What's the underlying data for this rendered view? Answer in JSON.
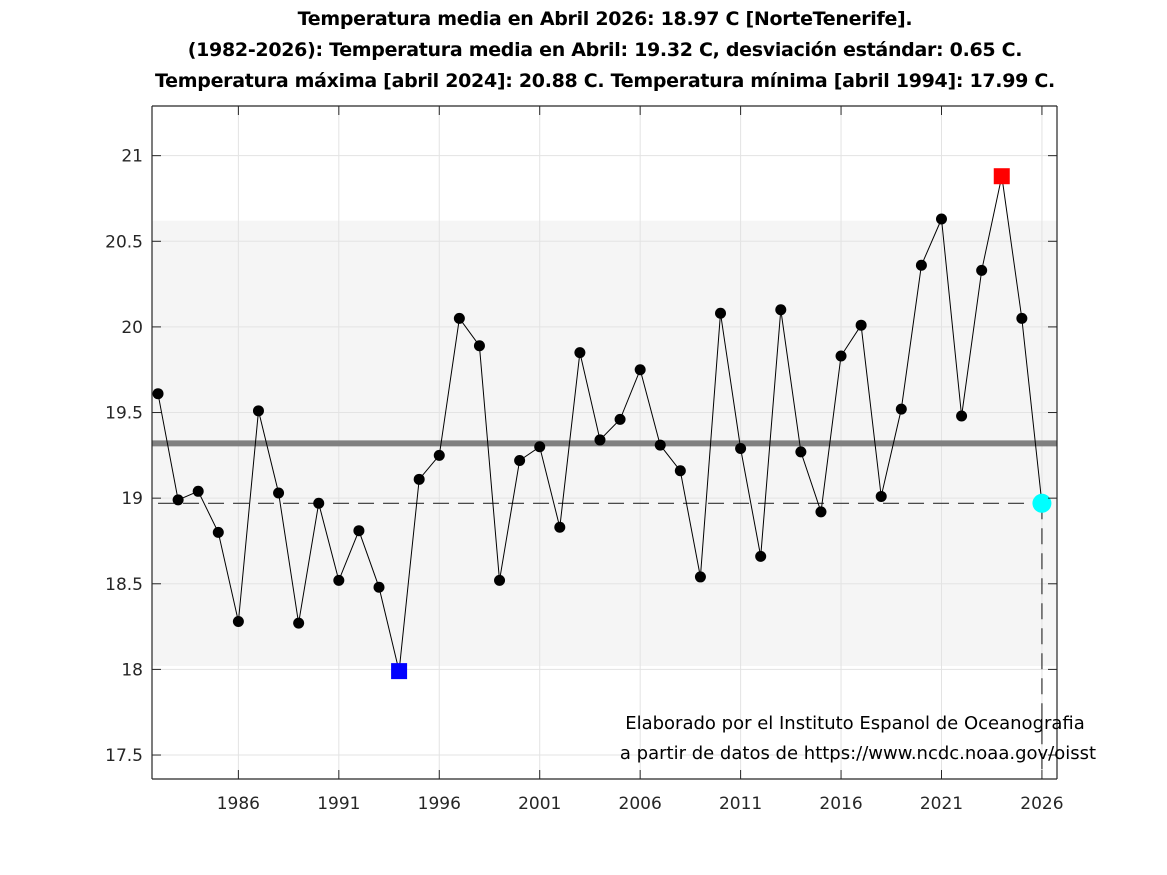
{
  "chart_data": {
    "type": "line",
    "title_lines": [
      "Temperatura media en Abril 2026: 18.97 C [NorteTenerife].",
      "(1982-2026): Temperatura media en Abril: 19.32 C, desviación estándar: 0.65 C.",
      "Temperatura máxima [abril 2024]: 20.88 C. Temperatura mínima [abril 1994]: 17.99 C."
    ],
    "xlabel": "",
    "ylabel": "",
    "xlim": [
      1981.7,
      2026.75
    ],
    "ylim": [
      17.36,
      21.29
    ],
    "grid": true,
    "x_ticks": [
      1986,
      1991,
      1996,
      2001,
      2006,
      2011,
      2016,
      2021,
      2026
    ],
    "x_tick_labels": [
      "1986",
      "1991",
      "1996",
      "2001",
      "2006",
      "2011",
      "2016",
      "2021",
      "2026"
    ],
    "y_ticks": [
      17.5,
      18,
      18.5,
      19,
      19.5,
      20,
      20.5,
      21
    ],
    "y_tick_labels": [
      "17.5",
      "18",
      "18.5",
      "19",
      "19.5",
      "20",
      "20.5",
      "21"
    ],
    "series": [
      {
        "name": "Temperatura media Abril",
        "x": [
          1982,
          1983,
          1984,
          1985,
          1986,
          1987,
          1988,
          1989,
          1990,
          1991,
          1992,
          1993,
          1994,
          1995,
          1996,
          1997,
          1998,
          1999,
          2000,
          2001,
          2002,
          2003,
          2004,
          2005,
          2006,
          2007,
          2008,
          2009,
          2010,
          2011,
          2012,
          2013,
          2014,
          2015,
          2016,
          2017,
          2018,
          2019,
          2020,
          2021,
          2022,
          2023,
          2024,
          2025,
          2026
        ],
        "values": [
          19.61,
          18.99,
          19.04,
          18.8,
          18.28,
          19.51,
          19.03,
          18.27,
          18.97,
          18.52,
          18.81,
          18.48,
          17.99,
          19.11,
          19.25,
          20.05,
          19.89,
          18.52,
          19.22,
          19.3,
          18.83,
          19.85,
          19.34,
          19.46,
          19.75,
          19.31,
          19.16,
          18.54,
          20.08,
          19.29,
          18.66,
          20.1,
          19.27,
          18.92,
          19.83,
          20.01,
          19.01,
          19.52,
          20.36,
          20.63,
          19.48,
          20.33,
          20.88,
          20.05,
          18.97
        ],
        "color": "#000000"
      }
    ],
    "mean": 19.32,
    "std": 0.65,
    "band": [
      18.02,
      20.62
    ],
    "current": {
      "year": 2026,
      "value": 18.97,
      "color": "#00ffff"
    },
    "max": {
      "year": 2024,
      "value": 20.88,
      "color": "#ff0000"
    },
    "min": {
      "year": 1994,
      "value": 17.99,
      "color": "#0000ff"
    },
    "mean_line_color": "#808080",
    "band_color": "#f5f5f5",
    "annotation": [
      "Elaborado por el Instituto Espanol de Oceanografia",
      "a partir de datos de https://www.ncdc.noaa.gov/oisst"
    ]
  }
}
